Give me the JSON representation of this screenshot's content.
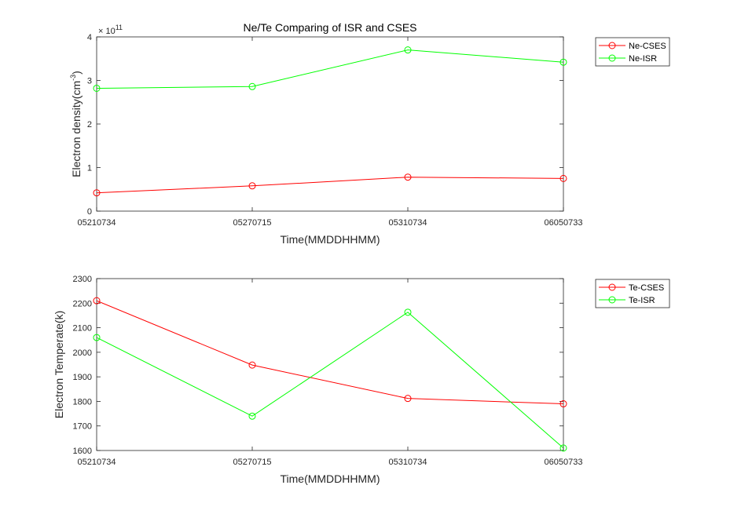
{
  "chart_data": [
    {
      "type": "line",
      "title": "Ne/Te Comparing of ISR and CSES",
      "xlabel": "Time(MMDDHHMM)",
      "ylabel": "Electron density(cm",
      "ylabel_exponent": "-3",
      "ylabel_close": ")",
      "y_multiplier_base": "× 10",
      "y_multiplier_exponent": "11",
      "categories": [
        "05210734",
        "05270715",
        "05310734",
        "06050733"
      ],
      "ylim": [
        0,
        4
      ],
      "yticks": [
        "0",
        "1",
        "2",
        "3",
        "4"
      ],
      "series": [
        {
          "name": "Ne-CSES",
          "color": "#ff0000",
          "values": [
            0.42,
            0.58,
            0.78,
            0.75
          ]
        },
        {
          "name": "Ne-ISR",
          "color": "#00ff00",
          "values": [
            2.82,
            2.86,
            3.7,
            3.42
          ]
        }
      ],
      "legend": "outside-top-right",
      "grid": false
    },
    {
      "type": "line",
      "title": "",
      "xlabel": "Time(MMDDHHMM)",
      "ylabel": "Electron Temperate(k)",
      "categories": [
        "05210734",
        "05270715",
        "05310734",
        "06050733"
      ],
      "ylim": [
        1600,
        2300
      ],
      "yticks": [
        "1600",
        "1700",
        "1800",
        "1900",
        "2000",
        "2100",
        "2200",
        "2300"
      ],
      "series": [
        {
          "name": "Te-CSES",
          "color": "#ff0000",
          "values": [
            2210,
            1948,
            1812,
            1790
          ]
        },
        {
          "name": "Te-ISR",
          "color": "#00ff00",
          "values": [
            2060,
            1740,
            2163,
            1610
          ]
        }
      ],
      "legend": "outside-top-right",
      "grid": false
    }
  ]
}
